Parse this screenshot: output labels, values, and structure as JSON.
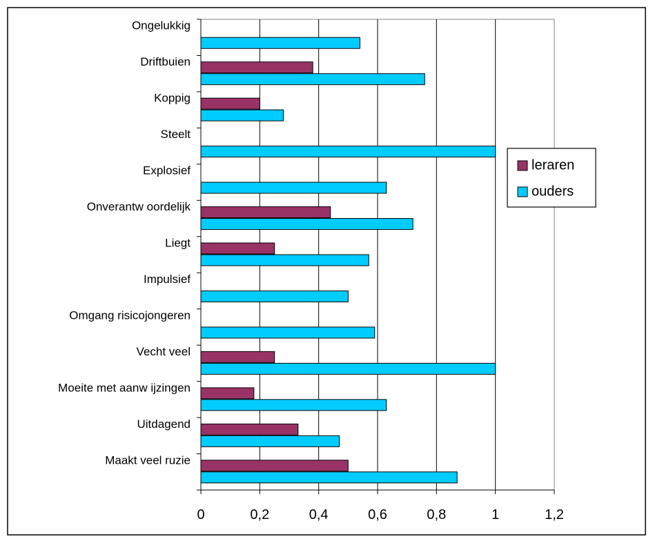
{
  "chart_data": {
    "type": "bar",
    "orientation": "horizontal",
    "title": "",
    "xlabel": "",
    "ylabel": "",
    "categories": [
      "Ongelukkig",
      "Driftbuien",
      "Koppig",
      "Steelt",
      "Explosief",
      "Onverantw oordelijk",
      "Liegt",
      "Impulsief",
      "Omgang risicojongeren",
      "Vecht veel",
      "Moeite met aanw ijzingen",
      "Uitdagend",
      "Maakt veel ruzie"
    ],
    "series": [
      {
        "name": "leraren",
        "color": "#993366",
        "values": [
          0,
          0.38,
          0.2,
          0,
          0,
          0.44,
          0.25,
          0,
          0,
          0.25,
          0.18,
          0.33,
          0.5
        ]
      },
      {
        "name": "ouders",
        "color": "#00CCFF",
        "values": [
          0.54,
          0.76,
          0.28,
          1.0,
          0.63,
          0.72,
          0.57,
          0.5,
          0.59,
          1.0,
          0.63,
          0.47,
          0.87
        ]
      }
    ],
    "xlim": [
      0,
      1.2
    ],
    "xticks": [
      "0",
      "0,2",
      "0,4",
      "0,6",
      "0,8",
      "1",
      "1,2"
    ],
    "xtick_values": [
      0,
      0.2,
      0.4,
      0.6,
      0.8,
      1.0,
      1.2
    ],
    "grid": true,
    "legend_position": "right"
  }
}
